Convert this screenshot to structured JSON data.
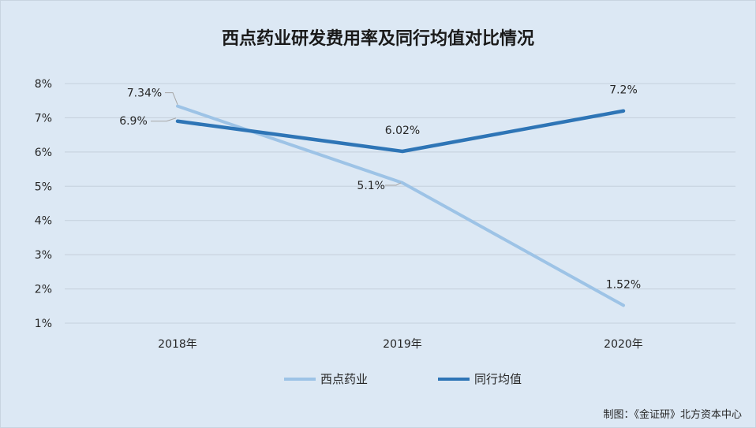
{
  "chart_data": {
    "type": "line",
    "title": "西点药业研发费用率及同行均值对比情况",
    "categories": [
      "2018年",
      "2019年",
      "2020年"
    ],
    "y_ticks": [
      "1%",
      "2%",
      "3%",
      "4%",
      "5%",
      "6%",
      "7%",
      "8%"
    ],
    "ylim": [
      1,
      8
    ],
    "grid": true,
    "legend_position": "bottom",
    "series": [
      {
        "name": "西点药业",
        "values": [
          7.34,
          5.1,
          1.52
        ],
        "labels": [
          "7.34%",
          "5.1%",
          "1.52%"
        ],
        "color": "#9dc3e6"
      },
      {
        "name": "同行均值",
        "values": [
          6.9,
          6.02,
          7.2
        ],
        "labels": [
          "6.9%",
          "6.02%",
          "7.2%"
        ],
        "color": "#2e75b6"
      }
    ],
    "source": "制图：《金证研》北方资本中心"
  }
}
